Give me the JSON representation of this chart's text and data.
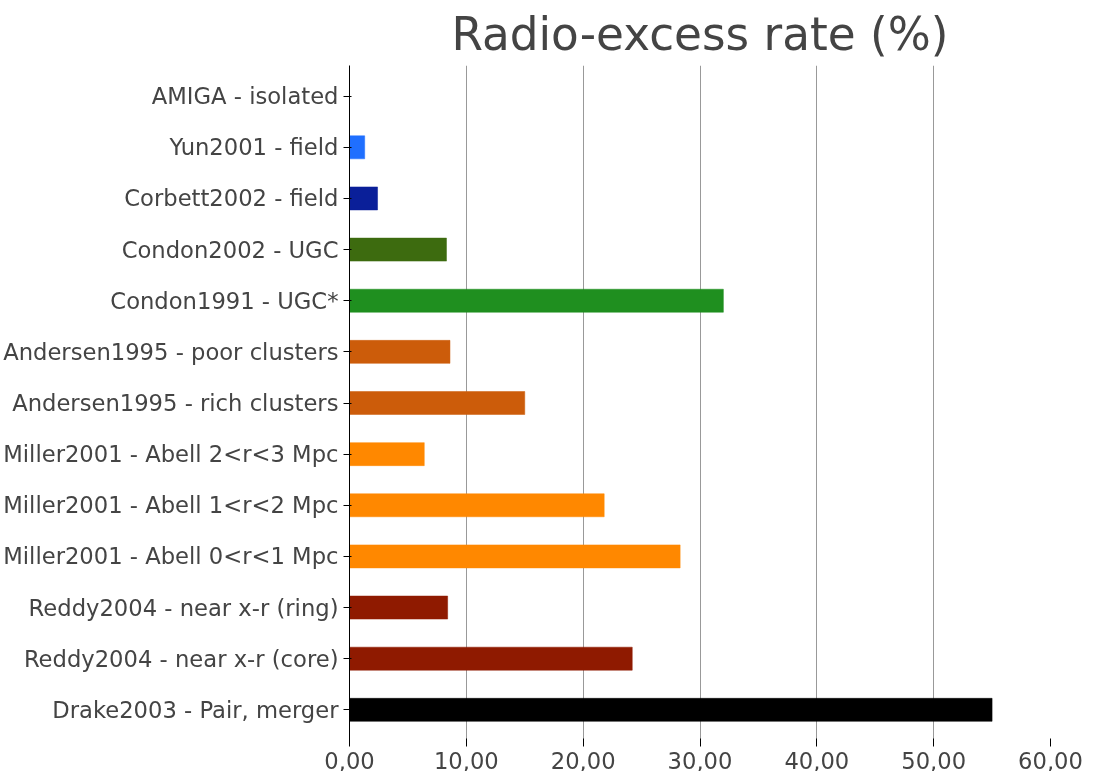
{
  "chart_data": {
    "type": "bar",
    "orientation": "horizontal",
    "title": "Radio-excess rate (%)",
    "categories": [
      "AMIGA - isolated",
      "Yun2001 - field",
      "Corbett2002 - field",
      "Condon2002 - UGC",
      "Condon1991 - UGC*",
      "Andersen1995 - poor clusters",
      "Andersen1995 - rich clusters",
      "Miller2001 - Abell 2<r<3 Mpc",
      "Miller2001 - Abell 1<r<2 Mpc",
      "Miller2001 - Abell 0<r<1 Mpc",
      "Reddy2004 - near x-r (ring)",
      "Reddy2004 - near x-r (core)",
      "Drake2003 - Pair, merger"
    ],
    "values": [
      0,
      1.3,
      2.4,
      8.3,
      32.0,
      8.6,
      15.0,
      6.4,
      21.8,
      28.3,
      8.4,
      24.2,
      55.0
    ],
    "colors": [
      "#3399ff",
      "#1f6fff",
      "#0a1f99",
      "#3d6b0f",
      "#1f8f1f",
      "#cc5c0a",
      "#cc5c0a",
      "#ff8800",
      "#ff8800",
      "#ff8800",
      "#8f1a00",
      "#8f1a00",
      "#000000"
    ],
    "xlim": [
      0,
      60
    ],
    "xticks": [
      {
        "value": 0,
        "label": "0,00"
      },
      {
        "value": 10,
        "label": "10,00"
      },
      {
        "value": 20,
        "label": "20,00"
      },
      {
        "value": 30,
        "label": "30,00"
      },
      {
        "value": 40,
        "label": "40,00"
      },
      {
        "value": 50,
        "label": "50,00"
      },
      {
        "value": 60,
        "label": "60,00"
      }
    ],
    "grid": "x"
  }
}
